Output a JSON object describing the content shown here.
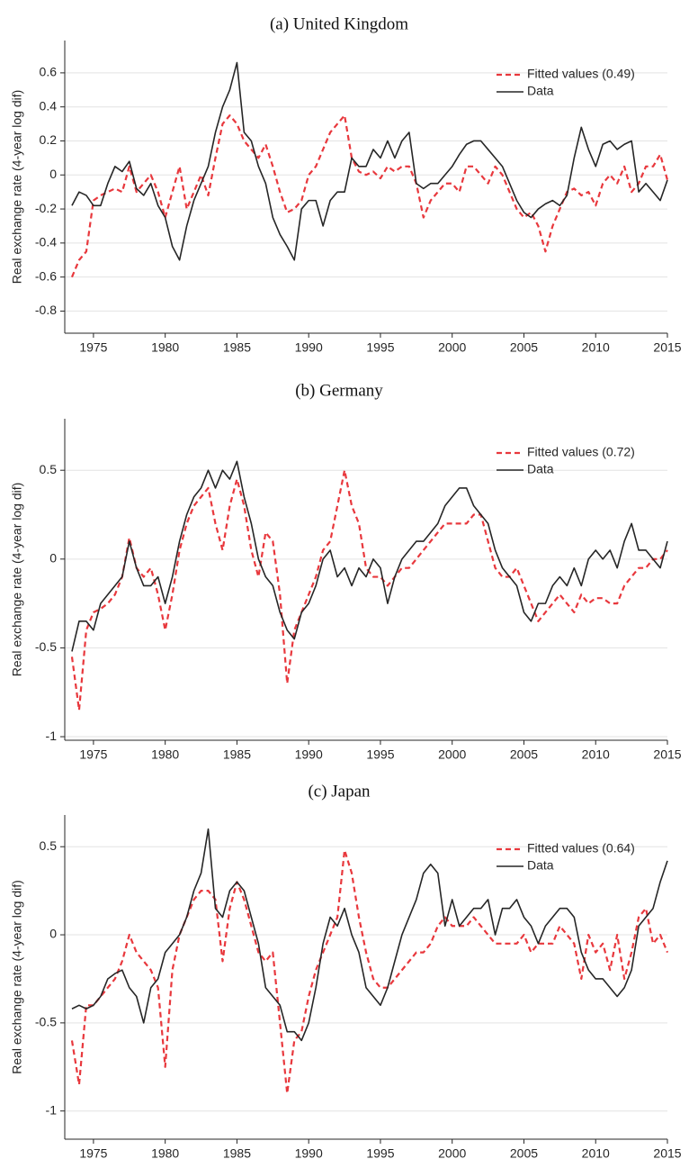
{
  "chart_data": [
    {
      "type": "line",
      "title": "(a) United Kingdom",
      "y_label": "Real exchange rate (4-year log dif)",
      "x": [
        1973.5,
        1974,
        1974.5,
        1975,
        1975.5,
        1976,
        1976.5,
        1977,
        1977.5,
        1978,
        1978.5,
        1979,
        1979.5,
        1980,
        1980.5,
        1981,
        1981.5,
        1982,
        1982.5,
        1983,
        1983.5,
        1984,
        1984.5,
        1985,
        1985.5,
        1986,
        1986.5,
        1987,
        1987.5,
        1988,
        1988.5,
        1989,
        1989.5,
        1990,
        1990.5,
        1991,
        1991.5,
        1992,
        1992.5,
        1993,
        1993.5,
        1994,
        1994.5,
        1995,
        1995.5,
        1996,
        1996.5,
        1997,
        1997.5,
        1998,
        1998.5,
        1999,
        1999.5,
        2000,
        2000.5,
        2001,
        2001.5,
        2002,
        2002.5,
        2003,
        2003.5,
        2004,
        2004.5,
        2005,
        2005.5,
        2006,
        2006.5,
        2007,
        2007.5,
        2008,
        2008.5,
        2009,
        2009.5,
        2010,
        2010.5,
        2011,
        2011.5,
        2012,
        2012.5,
        2013,
        2013.5,
        2014,
        2014.5,
        2015
      ],
      "series": [
        {
          "name": "Fitted values (0.49)",
          "color": "#e8383d",
          "linestyle": "dashed",
          "values": [
            -0.6,
            -0.5,
            -0.45,
            -0.15,
            -0.12,
            -0.1,
            -0.08,
            -0.1,
            0.05,
            -0.1,
            -0.05,
            0,
            -0.1,
            -0.25,
            -0.1,
            0.05,
            -0.2,
            -0.1,
            0,
            -0.12,
            0.1,
            0.3,
            0.35,
            0.3,
            0.2,
            0.15,
            0.1,
            0.18,
            0.05,
            -0.1,
            -0.22,
            -0.2,
            -0.15,
            0,
            0.05,
            0.15,
            0.25,
            0.3,
            0.35,
            0.1,
            0.02,
            0,
            0.02,
            -0.02,
            0.05,
            0.02,
            0.05,
            0.05,
            -0.05,
            -0.25,
            -0.15,
            -0.1,
            -0.05,
            -0.05,
            -0.1,
            0.05,
            0.05,
            0,
            -0.05,
            0.05,
            0,
            -0.1,
            -0.2,
            -0.25,
            -0.22,
            -0.3,
            -0.45,
            -0.3,
            -0.2,
            -0.1,
            -0.08,
            -0.12,
            -0.1,
            -0.18,
            -0.05,
            0,
            -0.05,
            0.05,
            -0.1,
            -0.05,
            0.05,
            0.05,
            0.12,
            -0.03
          ]
        },
        {
          "name": "Data",
          "color": "#262626",
          "linestyle": "solid",
          "values": [
            -0.18,
            -0.1,
            -0.12,
            -0.18,
            -0.18,
            -0.05,
            0.05,
            0.02,
            0.08,
            -0.08,
            -0.12,
            -0.05,
            -0.18,
            -0.25,
            -0.42,
            -0.5,
            -0.3,
            -0.15,
            -0.05,
            0.05,
            0.25,
            0.4,
            0.5,
            0.66,
            0.25,
            0.2,
            0.05,
            -0.05,
            -0.25,
            -0.35,
            -0.42,
            -0.5,
            -0.2,
            -0.15,
            -0.15,
            -0.3,
            -0.15,
            -0.1,
            -0.1,
            0.1,
            0.05,
            0.05,
            0.15,
            0.1,
            0.2,
            0.1,
            0.2,
            0.25,
            -0.05,
            -0.08,
            -0.05,
            -0.05,
            0,
            0.05,
            0.12,
            0.18,
            0.2,
            0.2,
            0.15,
            0.1,
            0.05,
            -0.05,
            -0.15,
            -0.22,
            -0.25,
            -0.2,
            -0.17,
            -0.15,
            -0.18,
            -0.12,
            0.1,
            0.28,
            0.15,
            0.05,
            0.18,
            0.2,
            0.15,
            0.18,
            0.2,
            -0.1,
            -0.05,
            -0.1,
            -0.15,
            -0.03
          ]
        }
      ],
      "xlim": [
        1973,
        2015
      ],
      "xticks": [
        1975,
        1980,
        1985,
        1990,
        1995,
        2000,
        2005,
        2010,
        2015
      ],
      "ylim": [
        -0.93,
        0.79
      ],
      "yticks": [
        -0.8,
        -0.6,
        -0.4,
        -0.2,
        0,
        0.2,
        0.4,
        0.6
      ],
      "grid": true,
      "legend": "upper right"
    },
    {
      "type": "line",
      "title": "(b) Germany",
      "y_label": "Real exchange rate (4-year log dif)",
      "x": [
        1973.5,
        1974,
        1974.5,
        1975,
        1975.5,
        1976,
        1976.5,
        1977,
        1977.5,
        1978,
        1978.5,
        1979,
        1979.5,
        1980,
        1980.5,
        1981,
        1981.5,
        1982,
        1982.5,
        1983,
        1983.5,
        1984,
        1984.5,
        1985,
        1985.5,
        1986,
        1986.5,
        1987,
        1987.5,
        1988,
        1988.5,
        1989,
        1989.5,
        1990,
        1990.5,
        1991,
        1991.5,
        1992,
        1992.5,
        1993,
        1993.5,
        1994,
        1994.5,
        1995,
        1995.5,
        1996,
        1996.5,
        1997,
        1997.5,
        1998,
        1998.5,
        1999,
        1999.5,
        2000,
        2000.5,
        2001,
        2001.5,
        2002,
        2002.5,
        2003,
        2003.5,
        2004,
        2004.5,
        2005,
        2005.5,
        2006,
        2006.5,
        2007,
        2007.5,
        2008,
        2008.5,
        2009,
        2009.5,
        2010,
        2010.5,
        2011,
        2011.5,
        2012,
        2012.5,
        2013,
        2013.5,
        2014,
        2014.5,
        2015
      ],
      "series": [
        {
          "name": "Fitted values (0.72)",
          "color": "#e8383d",
          "linestyle": "dashed",
          "values": [
            -0.55,
            -0.85,
            -0.4,
            -0.3,
            -0.28,
            -0.25,
            -0.2,
            -0.1,
            0.12,
            -0.05,
            -0.1,
            -0.05,
            -0.2,
            -0.4,
            -0.2,
            0.05,
            0.2,
            0.3,
            0.35,
            0.4,
            0.2,
            0.05,
            0.3,
            0.45,
            0.3,
            0.05,
            -0.1,
            0.15,
            0.1,
            -0.2,
            -0.7,
            -0.4,
            -0.3,
            -0.2,
            -0.1,
            0.05,
            0.1,
            0.3,
            0.5,
            0.3,
            0.2,
            -0.05,
            -0.1,
            -0.1,
            -0.15,
            -0.1,
            -0.05,
            -0.05,
            0,
            0.05,
            0.1,
            0.15,
            0.2,
            0.2,
            0.2,
            0.2,
            0.25,
            0.25,
            0.1,
            -0.05,
            -0.1,
            -0.1,
            -0.05,
            -0.15,
            -0.25,
            -0.35,
            -0.3,
            -0.25,
            -0.2,
            -0.25,
            -0.3,
            -0.2,
            -0.25,
            -0.22,
            -0.22,
            -0.25,
            -0.25,
            -0.15,
            -0.1,
            -0.05,
            -0.05,
            0,
            0,
            0.05
          ]
        },
        {
          "name": "Data",
          "color": "#262626",
          "linestyle": "solid",
          "values": [
            -0.52,
            -0.35,
            -0.35,
            -0.4,
            -0.25,
            -0.2,
            -0.15,
            -0.1,
            0.1,
            -0.05,
            -0.15,
            -0.15,
            -0.1,
            -0.25,
            -0.1,
            0.1,
            0.25,
            0.35,
            0.4,
            0.5,
            0.4,
            0.5,
            0.45,
            0.55,
            0.35,
            0.2,
            0,
            -0.1,
            -0.15,
            -0.3,
            -0.4,
            -0.45,
            -0.3,
            -0.25,
            -0.15,
            0,
            0.05,
            -0.1,
            -0.05,
            -0.15,
            -0.05,
            -0.1,
            0,
            -0.05,
            -0.25,
            -0.1,
            0,
            0.05,
            0.1,
            0.1,
            0.15,
            0.2,
            0.3,
            0.35,
            0.4,
            0.4,
            0.3,
            0.25,
            0.2,
            0.05,
            -0.05,
            -0.1,
            -0.15,
            -0.3,
            -0.35,
            -0.25,
            -0.25,
            -0.15,
            -0.1,
            -0.15,
            -0.05,
            -0.15,
            0,
            0.05,
            0,
            0.05,
            -0.05,
            0.1,
            0.2,
            0.05,
            0.05,
            0,
            -0.05,
            0.1
          ]
        }
      ],
      "xlim": [
        1973,
        2015
      ],
      "xticks": [
        1975,
        1980,
        1985,
        1990,
        1995,
        2000,
        2005,
        2010,
        2015
      ],
      "ylim": [
        -1.02,
        0.79
      ],
      "yticks": [
        -1,
        -0.5,
        0,
        0.5
      ],
      "grid": true,
      "legend": "upper right"
    },
    {
      "type": "line",
      "title": "(c) Japan",
      "y_label": "Real exchange rate (4-year log dif)",
      "x": [
        1973.5,
        1974,
        1974.5,
        1975,
        1975.5,
        1976,
        1976.5,
        1977,
        1977.5,
        1978,
        1978.5,
        1979,
        1979.5,
        1980,
        1980.5,
        1981,
        1981.5,
        1982,
        1982.5,
        1983,
        1983.5,
        1984,
        1984.5,
        1985,
        1985.5,
        1986,
        1986.5,
        1987,
        1987.5,
        1988,
        1988.5,
        1989,
        1989.5,
        1990,
        1990.5,
        1991,
        1991.5,
        1992,
        1992.5,
        1993,
        1993.5,
        1994,
        1994.5,
        1995,
        1995.5,
        1996,
        1996.5,
        1997,
        1997.5,
        1998,
        1998.5,
        1999,
        1999.5,
        2000,
        2000.5,
        2001,
        2001.5,
        2002,
        2002.5,
        2003,
        2003.5,
        2004,
        2004.5,
        2005,
        2005.5,
        2006,
        2006.5,
        2007,
        2007.5,
        2008,
        2008.5,
        2009,
        2009.5,
        2010,
        2010.5,
        2011,
        2011.5,
        2012,
        2012.5,
        2013,
        2013.5,
        2014,
        2014.5,
        2015
      ],
      "series": [
        {
          "name": "Fitted values (0.64)",
          "color": "#e8383d",
          "linestyle": "dashed",
          "values": [
            -0.6,
            -0.85,
            -0.4,
            -0.4,
            -0.35,
            -0.3,
            -0.25,
            -0.15,
            0,
            -0.1,
            -0.15,
            -0.2,
            -0.3,
            -0.75,
            -0.2,
            0,
            0.1,
            0.2,
            0.25,
            0.25,
            0.2,
            -0.15,
            0.15,
            0.3,
            0.2,
            0.05,
            -0.1,
            -0.15,
            -0.1,
            -0.5,
            -0.9,
            -0.6,
            -0.55,
            -0.35,
            -0.2,
            -0.1,
            0,
            0.1,
            0.48,
            0.35,
            0.1,
            -0.1,
            -0.25,
            -0.3,
            -0.3,
            -0.25,
            -0.2,
            -0.15,
            -0.1,
            -0.1,
            -0.05,
            0.05,
            0.1,
            0.05,
            0.05,
            0.05,
            0.1,
            0.05,
            0,
            -0.05,
            -0.05,
            -0.05,
            -0.05,
            0,
            -0.1,
            -0.05,
            -0.05,
            -0.05,
            0.05,
            0,
            -0.05,
            -0.25,
            0,
            -0.1,
            -0.05,
            -0.2,
            0,
            -0.25,
            -0.1,
            0.1,
            0.15,
            -0.05,
            0,
            -0.1
          ]
        },
        {
          "name": "Data",
          "color": "#262626",
          "linestyle": "solid",
          "values": [
            -0.42,
            -0.4,
            -0.42,
            -0.4,
            -0.35,
            -0.25,
            -0.22,
            -0.2,
            -0.3,
            -0.35,
            -0.5,
            -0.3,
            -0.25,
            -0.1,
            -0.05,
            0,
            0.1,
            0.25,
            0.35,
            0.6,
            0.15,
            0.1,
            0.25,
            0.3,
            0.25,
            0.1,
            -0.05,
            -0.3,
            -0.35,
            -0.4,
            -0.55,
            -0.55,
            -0.6,
            -0.5,
            -0.3,
            -0.05,
            0.1,
            0.05,
            0.15,
            0,
            -0.1,
            -0.3,
            -0.35,
            -0.4,
            -0.3,
            -0.15,
            0,
            0.1,
            0.2,
            0.35,
            0.4,
            0.35,
            0.05,
            0.2,
            0.05,
            0.1,
            0.15,
            0.15,
            0.2,
            0,
            0.15,
            0.15,
            0.2,
            0.1,
            0.05,
            -0.05,
            0.05,
            0.1,
            0.15,
            0.15,
            0.1,
            -0.1,
            -0.2,
            -0.25,
            -0.25,
            -0.3,
            -0.35,
            -0.3,
            -0.2,
            0.05,
            0.1,
            0.15,
            0.3,
            0.42
          ]
        }
      ],
      "xlim": [
        1973,
        2015
      ],
      "xticks": [
        1975,
        1980,
        1985,
        1990,
        1995,
        2000,
        2005,
        2010,
        2015
      ],
      "ylim": [
        -1.16,
        0.68
      ],
      "yticks": [
        -1,
        -0.5,
        0,
        0.5
      ],
      "grid": true,
      "legend": "upper right"
    }
  ]
}
